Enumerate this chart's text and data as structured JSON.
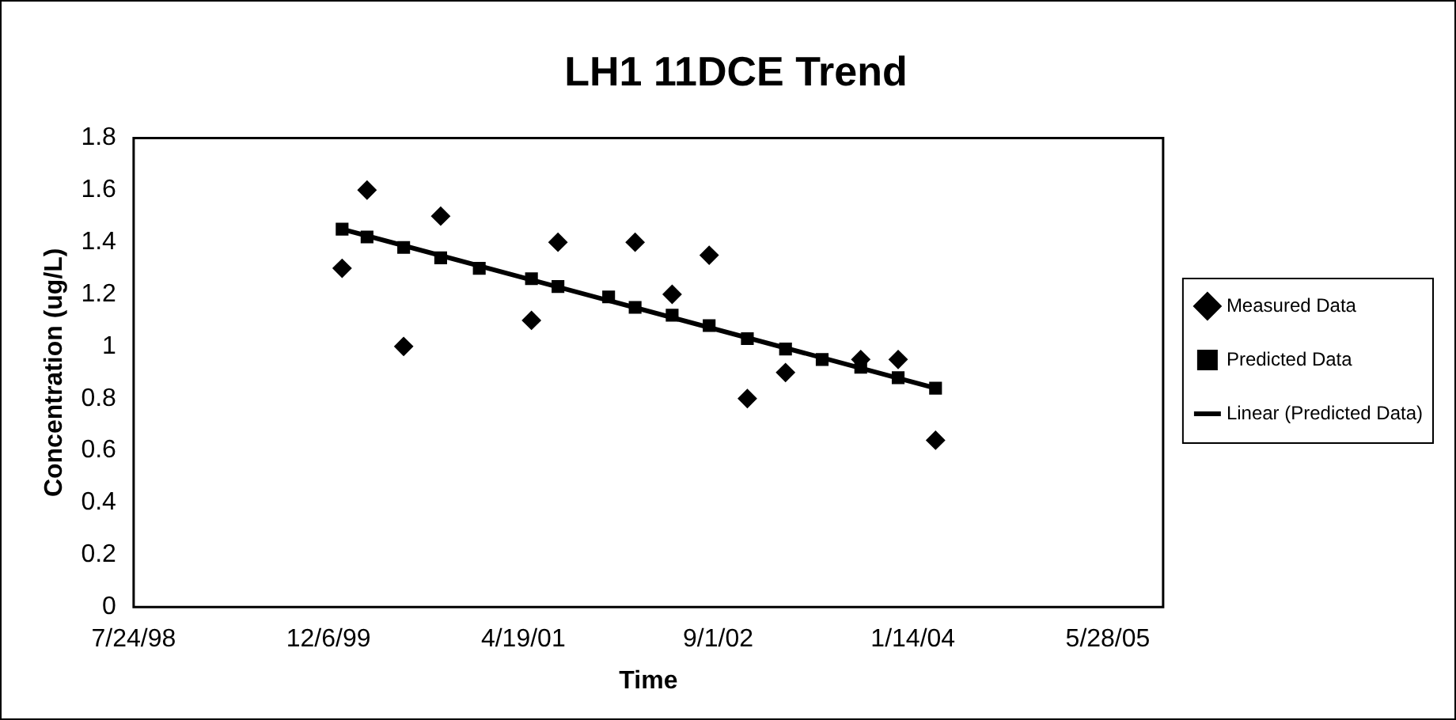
{
  "chart_data": {
    "type": "scatter",
    "title": "LH1 11DCE Trend",
    "xlabel": "Time",
    "ylabel": "Concentration (ug/L)",
    "xlim": [
      "1998-07-24",
      "2005-10-17"
    ],
    "xticks": [
      {
        "value": "1998-07-24",
        "label": "7/24/98"
      },
      {
        "value": "1999-12-06",
        "label": "12/6/99"
      },
      {
        "value": "2001-04-19",
        "label": "4/19/01"
      },
      {
        "value": "2002-09-01",
        "label": "9/1/02"
      },
      {
        "value": "2004-01-14",
        "label": "1/14/04"
      },
      {
        "value": "2005-05-28",
        "label": "5/28/05"
      }
    ],
    "ylim": [
      0,
      1.8
    ],
    "yticks": [
      0,
      0.2,
      0.4,
      0.6,
      0.8,
      1,
      1.2,
      1.4,
      1.6,
      1.8
    ],
    "grid": false,
    "legend": "right",
    "series": [
      {
        "name": "Measured Data",
        "marker": "diamond",
        "color": "#000000",
        "x": [
          "2000-01-10",
          "2000-03-14",
          "2000-06-16",
          "2000-09-19",
          "2001-05-10",
          "2001-07-17",
          "2002-01-31",
          "2002-05-06",
          "2002-08-09",
          "2002-11-15",
          "2003-02-21",
          "2003-09-02",
          "2003-12-07",
          "2004-03-12"
        ],
        "values": [
          1.3,
          1.6,
          1.0,
          1.5,
          1.1,
          1.4,
          1.4,
          1.2,
          1.35,
          0.8,
          0.9,
          0.95,
          0.95,
          0.64
        ]
      },
      {
        "name": "Predicted Data",
        "marker": "square",
        "color": "#000000",
        "x": [
          "2000-01-10",
          "2000-03-14",
          "2000-06-16",
          "2000-09-19",
          "2000-12-27",
          "2001-05-10",
          "2001-07-17",
          "2001-11-24",
          "2002-01-31",
          "2002-05-06",
          "2002-08-09",
          "2002-11-15",
          "2003-02-21",
          "2003-05-26",
          "2003-09-02",
          "2003-12-07",
          "2004-03-12"
        ],
        "values": [
          1.45,
          1.42,
          1.38,
          1.34,
          1.3,
          1.26,
          1.23,
          1.19,
          1.15,
          1.12,
          1.08,
          1.03,
          0.99,
          0.95,
          0.92,
          0.88,
          0.84
        ]
      },
      {
        "name": "Linear (Predicted Data)",
        "type": "line",
        "marker": "none",
        "line_style": "solid",
        "color": "#000000",
        "x": [
          "2000-01-10",
          "2004-03-12"
        ],
        "values": [
          1.45,
          0.84
        ]
      }
    ]
  }
}
